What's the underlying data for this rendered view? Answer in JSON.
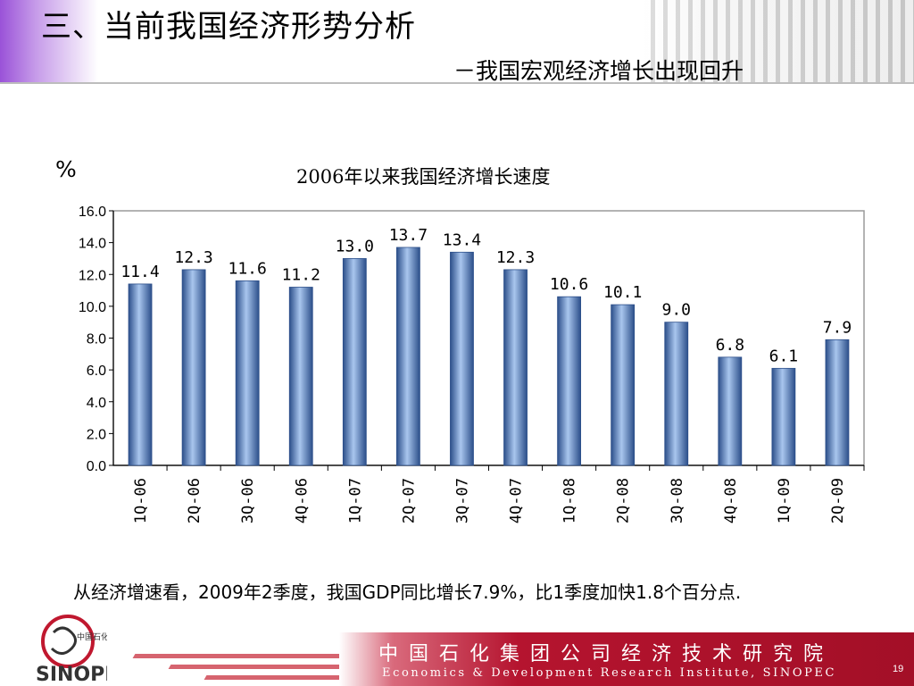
{
  "slide": {
    "title": "三、当前我国经济形势分析",
    "subtitle": "－我国宏观经济增长出现回升",
    "unit_label": "%",
    "summary": "从经济增速看，2009年2季度，我国GDP同比增长7.9%，比1季度加快1.8个百分点.",
    "footer_cn": "中国石化集团公司经济技术研究院",
    "footer_en": "Economics & Development Research Institute, SINOPEC",
    "page_number": "19",
    "logo_text": "中国石化",
    "colors": {
      "bar": "#4f7fc4",
      "bar_highlight": "#a9c6ee",
      "footer_red": "#b5142f",
      "header_purple": "#9a52d8"
    }
  },
  "chart_data": {
    "type": "bar",
    "title": "2006年以来我国经济增长速度",
    "categories": [
      "1Q-06",
      "2Q-06",
      "3Q-06",
      "4Q-06",
      "1Q-07",
      "2Q-07",
      "3Q-07",
      "4Q-07",
      "1Q-08",
      "2Q-08",
      "3Q-08",
      "4Q-08",
      "1Q-09",
      "2Q-09"
    ],
    "values": [
      11.4,
      12.3,
      11.6,
      11.2,
      13.0,
      13.7,
      13.4,
      12.3,
      10.6,
      10.1,
      9.0,
      6.8,
      6.1,
      7.9
    ],
    "value_labels": [
      "11.4",
      "12.3",
      "11.6",
      "11.2",
      "13.0",
      "13.7",
      "13.4",
      "12.3",
      "10.6",
      "10.1",
      "9.0",
      "6.8",
      "6.1",
      "7.9"
    ],
    "ylim": [
      0,
      16
    ],
    "yticks": [
      "0.0",
      "2.0",
      "4.0",
      "6.0",
      "8.0",
      "10.0",
      "12.0",
      "14.0",
      "16.0"
    ],
    "ylabel": "%",
    "xlabel": "",
    "grid": false,
    "legend": "none"
  }
}
